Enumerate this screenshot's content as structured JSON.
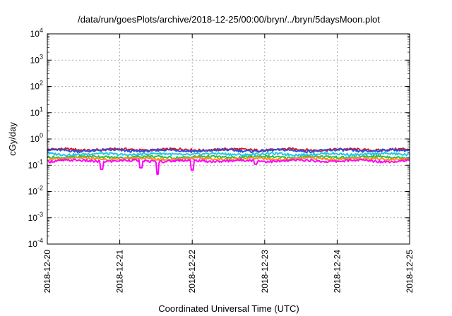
{
  "chart_data": {
    "type": "line",
    "title": "/data/run/goesPlots/archive/2018-12-25/00:00/bryn/../bryn/5daysMoon.plot",
    "xlabel": "Coordinated Universal Time (UTC)",
    "ylabel": "cGy/day",
    "yscale": "log",
    "ylim": [
      0.0001,
      10000
    ],
    "xlim": [
      "2018-12-20",
      "2018-12-25"
    ],
    "x_ticks": [
      "2018-12-20",
      "2018-12-21",
      "2018-12-22",
      "2018-12-23",
      "2018-12-24",
      "2018-12-25"
    ],
    "y_ticks": [
      {
        "value": 0.0001,
        "base": "10",
        "exp": "-4"
      },
      {
        "value": 0.001,
        "base": "10",
        "exp": "-3"
      },
      {
        "value": 0.01,
        "base": "10",
        "exp": "-2"
      },
      {
        "value": 0.1,
        "base": "10",
        "exp": "-1"
      },
      {
        "value": 1,
        "base": "10",
        "exp": "0"
      },
      {
        "value": 10,
        "base": "10",
        "exp": "1"
      },
      {
        "value": 100,
        "base": "10",
        "exp": "2"
      },
      {
        "value": 1000,
        "base": "10",
        "exp": "3"
      },
      {
        "value": 10000,
        "base": "10",
        "exp": "4"
      }
    ],
    "grid": true,
    "legend": "none",
    "series": [
      {
        "color": "#d7191c",
        "base": 0.4,
        "dips": []
      },
      {
        "color": "#2b4ee0",
        "base": 0.37,
        "dips": []
      },
      {
        "color": "#25c6e6",
        "base": 0.27,
        "dips": []
      },
      {
        "color": "#2fbf3a",
        "base": 0.21,
        "dips": []
      },
      {
        "color": "#ff8c1a",
        "base": 0.18,
        "dips": []
      },
      {
        "color": "#ff00ff",
        "base": 0.15,
        "dips": [
          {
            "x": "2018-12-20T18:00",
            "value": 0.07
          },
          {
            "x": "2018-12-21T07:00",
            "value": 0.08
          },
          {
            "x": "2018-12-21T12:30",
            "value": 0.045
          },
          {
            "x": "2018-12-22T00:00",
            "value": 0.065
          },
          {
            "x": "2018-12-22T21:00",
            "value": 0.11
          }
        ]
      }
    ]
  }
}
